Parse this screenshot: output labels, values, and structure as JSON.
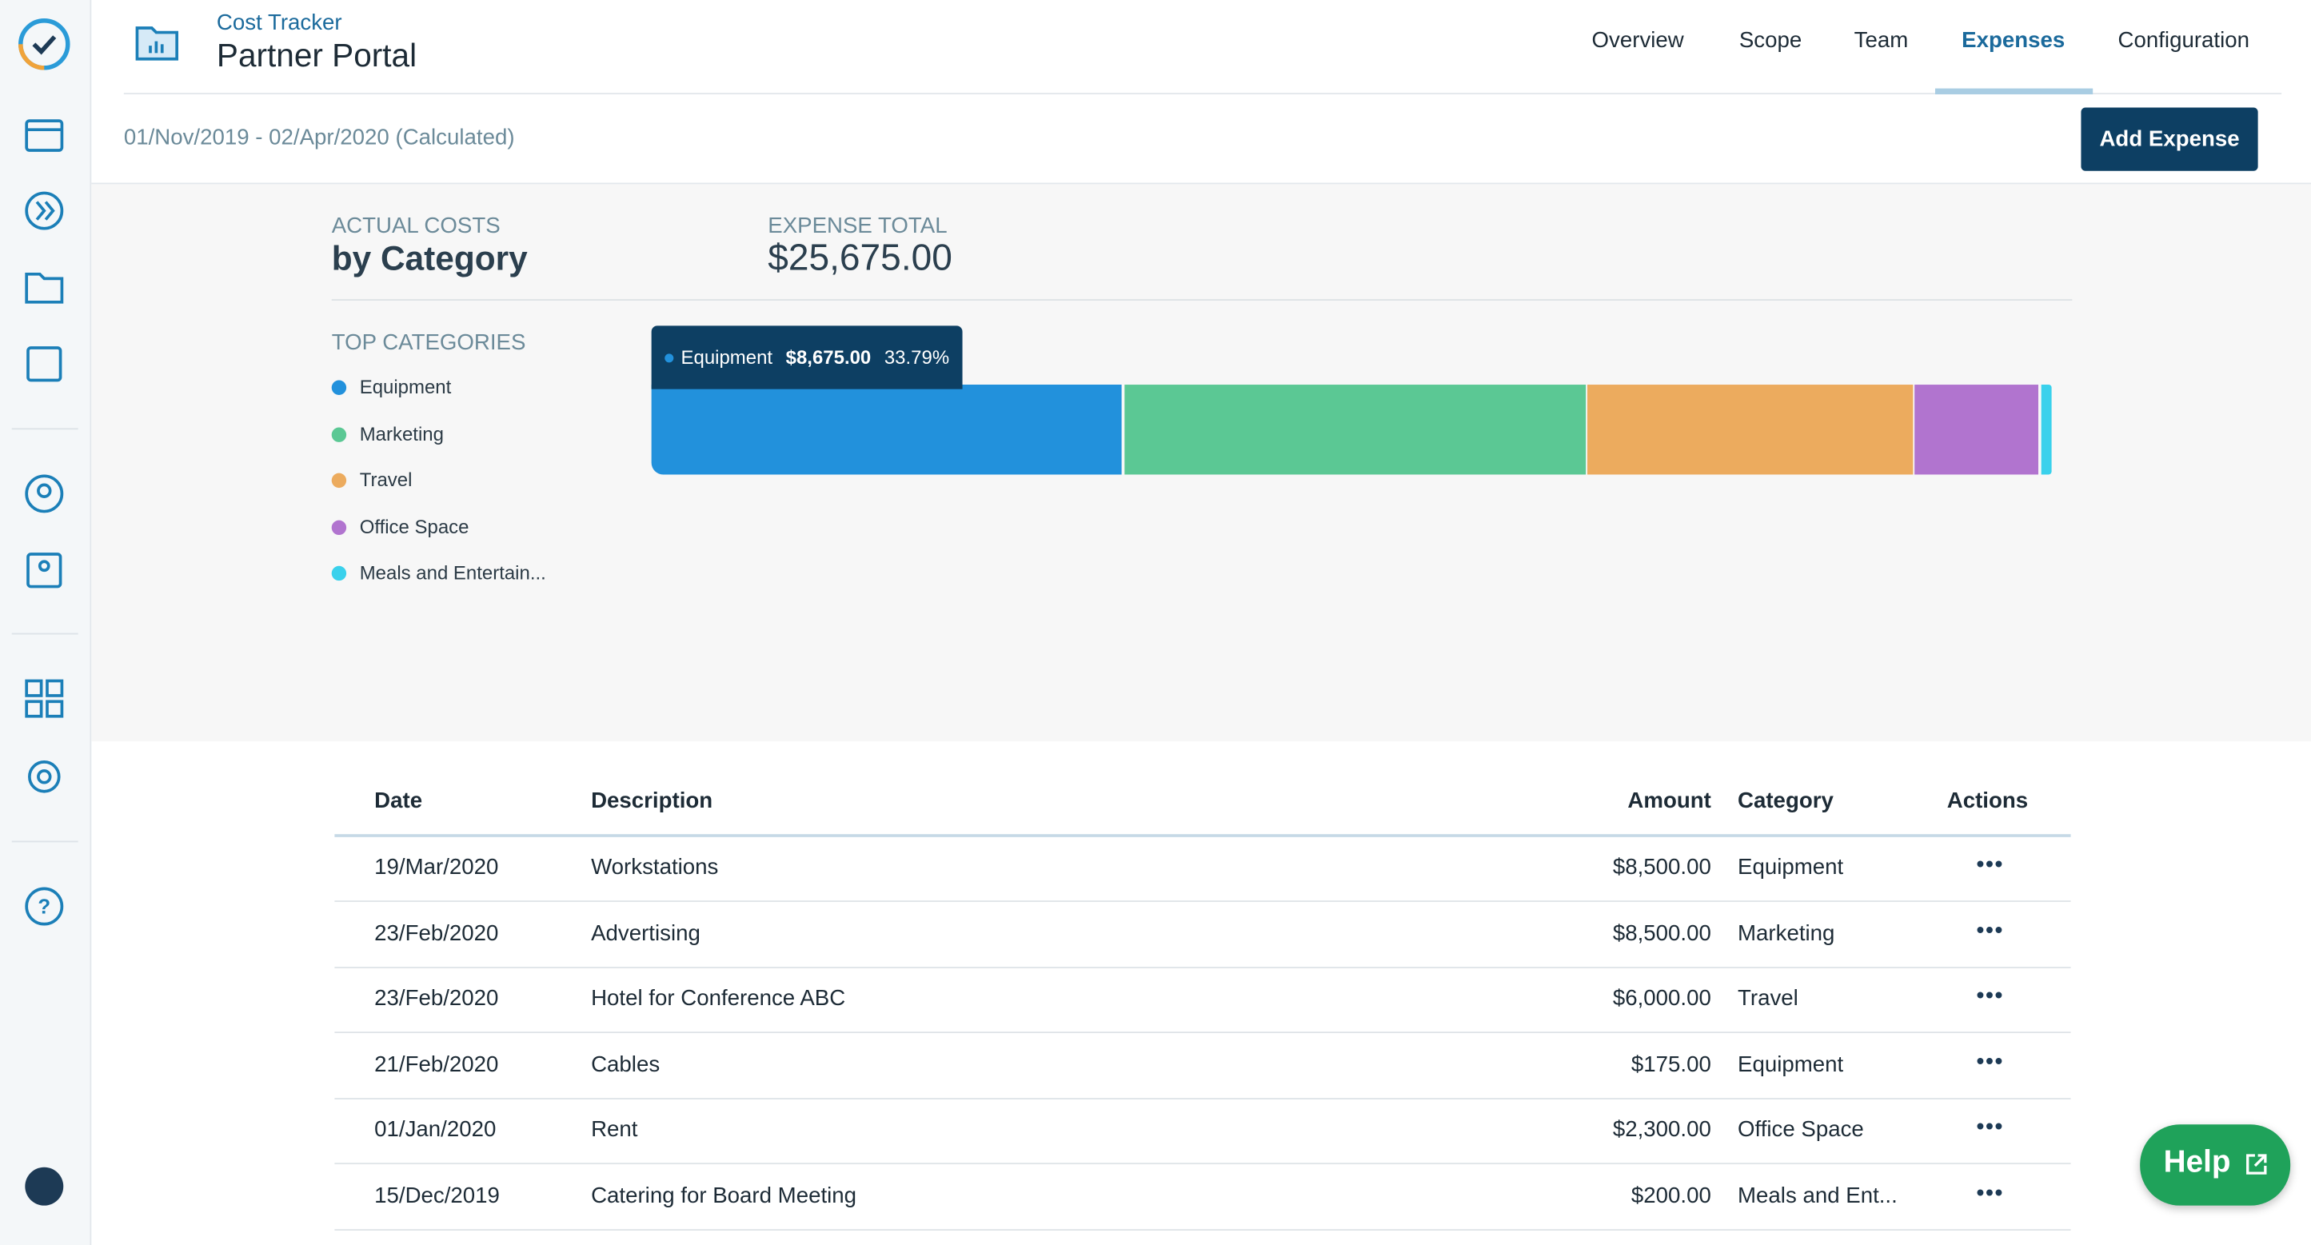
{
  "app": {
    "product": "Cost Tracker",
    "project": "Partner Portal"
  },
  "tabs": [
    "Overview",
    "Scope",
    "Team",
    "Expenses",
    "Configuration"
  ],
  "active_tab": 3,
  "date_range": "01/Nov/2019 - 02/Apr/2020 (Calculated)",
  "add_button": "Add Expense",
  "summary": {
    "label": "ACTUAL COSTS",
    "title": "by Category",
    "total_label": "EXPENSE TOTAL",
    "total": "$25,675.00"
  },
  "chart_data": {
    "type": "bar",
    "stacked": true,
    "orientation": "horizontal",
    "legend_title": "TOP CATEGORIES",
    "series": [
      {
        "name": "Equipment",
        "color": "#2291dc",
        "values": [
          8675
        ],
        "value_labels": [
          "$8,675.00"
        ],
        "percent_labels": [
          "33.79%"
        ]
      },
      {
        "name": "Marketing",
        "color": "#5bc894",
        "values": [
          8500
        ]
      },
      {
        "name": "Travel",
        "color": "#ecab5e",
        "values": [
          6000
        ]
      },
      {
        "name": "Office Space",
        "color": "#b174cf",
        "values": [
          2300
        ]
      },
      {
        "name": "Meals and Entertain...",
        "color": "#3ad1ec",
        "values": [
          200
        ]
      }
    ],
    "tooltip_series": 0
  },
  "table": {
    "columns": [
      "Date",
      "Description",
      "Amount",
      "Category",
      "Actions"
    ],
    "rows": [
      [
        "19/Mar/2020",
        "Workstations",
        "$8,500.00",
        "Equipment"
      ],
      [
        "23/Feb/2020",
        "Advertising",
        "$8,500.00",
        "Marketing"
      ],
      [
        "23/Feb/2020",
        "Hotel for Conference ABC",
        "$6,000.00",
        "Travel"
      ],
      [
        "21/Feb/2020",
        "Cables",
        "$175.00",
        "Equipment"
      ],
      [
        "01/Jan/2020",
        "Rent",
        "$2,300.00",
        "Office Space"
      ],
      [
        "15/Dec/2019",
        "Catering for Board Meeting",
        "$200.00",
        "Meals and Ent..."
      ]
    ]
  },
  "help": "Help"
}
